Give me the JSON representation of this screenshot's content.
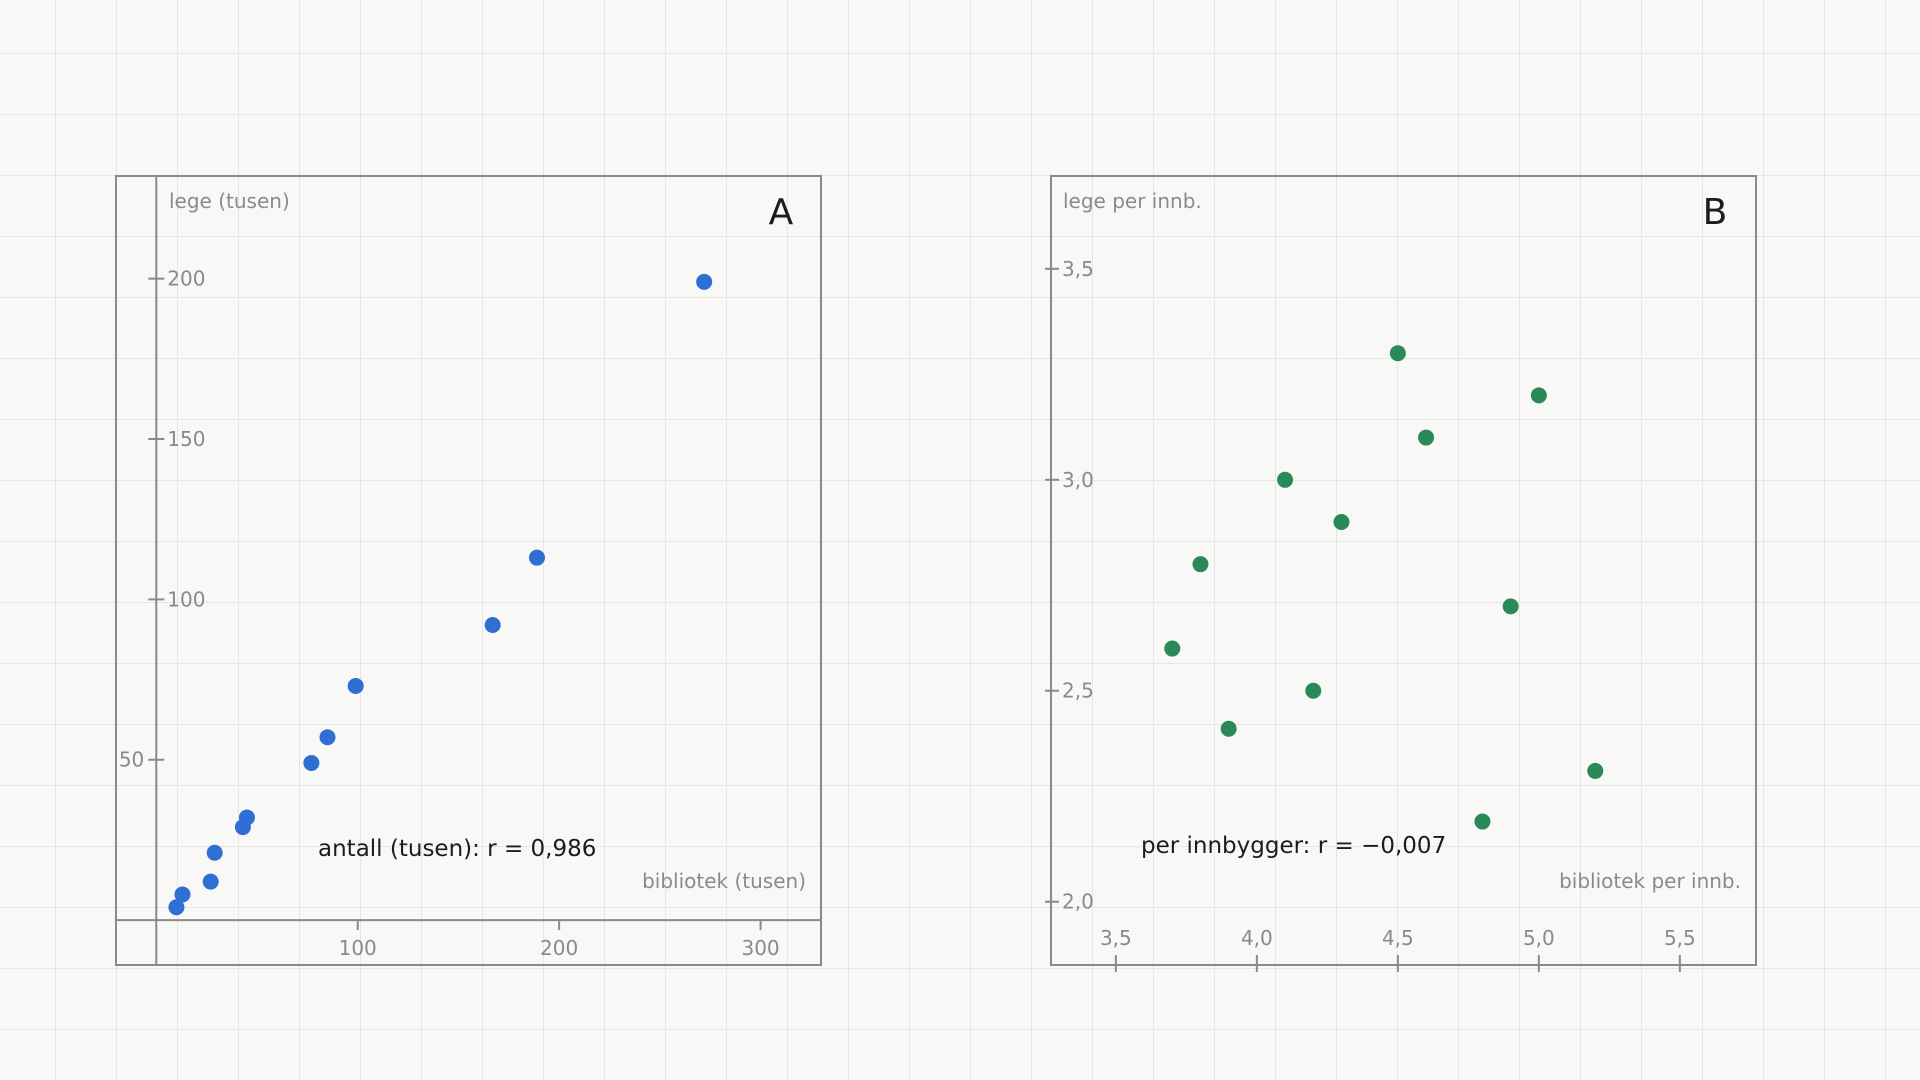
{
  "chart_data": [
    {
      "type": "scatter",
      "panel_label": "A",
      "title": "",
      "ylabel": "lege (tusen)",
      "xlabel": "bibliotek (tusen)",
      "annotation": "antall (tusen): r = 0,986",
      "xticks": [
        {
          "value": 100,
          "label": "100"
        },
        {
          "value": 200,
          "label": "200"
        },
        {
          "value": 300,
          "label": "300"
        }
      ],
      "yticks": [
        {
          "value": 50,
          "label": "50"
        },
        {
          "value": 100,
          "label": "100"
        },
        {
          "value": 150,
          "label": "150"
        },
        {
          "value": 200,
          "label": "200"
        }
      ],
      "xlim": [
        -20,
        330
      ],
      "ylim": [
        -14,
        232
      ],
      "color": "#2f6fd3",
      "points": [
        {
          "x": 10,
          "y": 4
        },
        {
          "x": 13,
          "y": 8
        },
        {
          "x": 27,
          "y": 12
        },
        {
          "x": 29,
          "y": 21
        },
        {
          "x": 43,
          "y": 29
        },
        {
          "x": 45,
          "y": 32
        },
        {
          "x": 77,
          "y": 49
        },
        {
          "x": 85,
          "y": 57
        },
        {
          "x": 99,
          "y": 73
        },
        {
          "x": 167,
          "y": 92
        },
        {
          "x": 189,
          "y": 113
        },
        {
          "x": 272,
          "y": 199
        }
      ]
    },
    {
      "type": "scatter",
      "panel_label": "B",
      "title": "",
      "ylabel": "lege per innb.",
      "xlabel": "bibliotek per innb.",
      "annotation": "per innbygger: r = −0,007",
      "xticks": [
        {
          "value": 3.5,
          "label": "3,5"
        },
        {
          "value": 4.0,
          "label": "4,0"
        },
        {
          "value": 4.5,
          "label": "4,5"
        },
        {
          "value": 5.0,
          "label": "5,0"
        },
        {
          "value": 5.5,
          "label": "5,5"
        }
      ],
      "yticks": [
        {
          "value": 2.0,
          "label": "2,0"
        },
        {
          "value": 2.5,
          "label": "2,5"
        },
        {
          "value": 3.0,
          "label": "3,0"
        },
        {
          "value": 3.5,
          "label": "3,5"
        }
      ],
      "xlim": [
        3.27,
        5.77
      ],
      "ylim": [
        1.85,
        3.72
      ],
      "color": "#2a8a57",
      "points": [
        {
          "x": 3.7,
          "y": 2.6
        },
        {
          "x": 3.8,
          "y": 2.8
        },
        {
          "x": 3.9,
          "y": 2.41
        },
        {
          "x": 4.1,
          "y": 3.0
        },
        {
          "x": 4.2,
          "y": 2.5
        },
        {
          "x": 4.3,
          "y": 2.9
        },
        {
          "x": 4.5,
          "y": 3.3
        },
        {
          "x": 4.6,
          "y": 3.1
        },
        {
          "x": 4.8,
          "y": 2.19
        },
        {
          "x": 4.9,
          "y": 2.7
        },
        {
          "x": 5.0,
          "y": 3.2
        },
        {
          "x": 5.2,
          "y": 2.31
        }
      ]
    }
  ]
}
